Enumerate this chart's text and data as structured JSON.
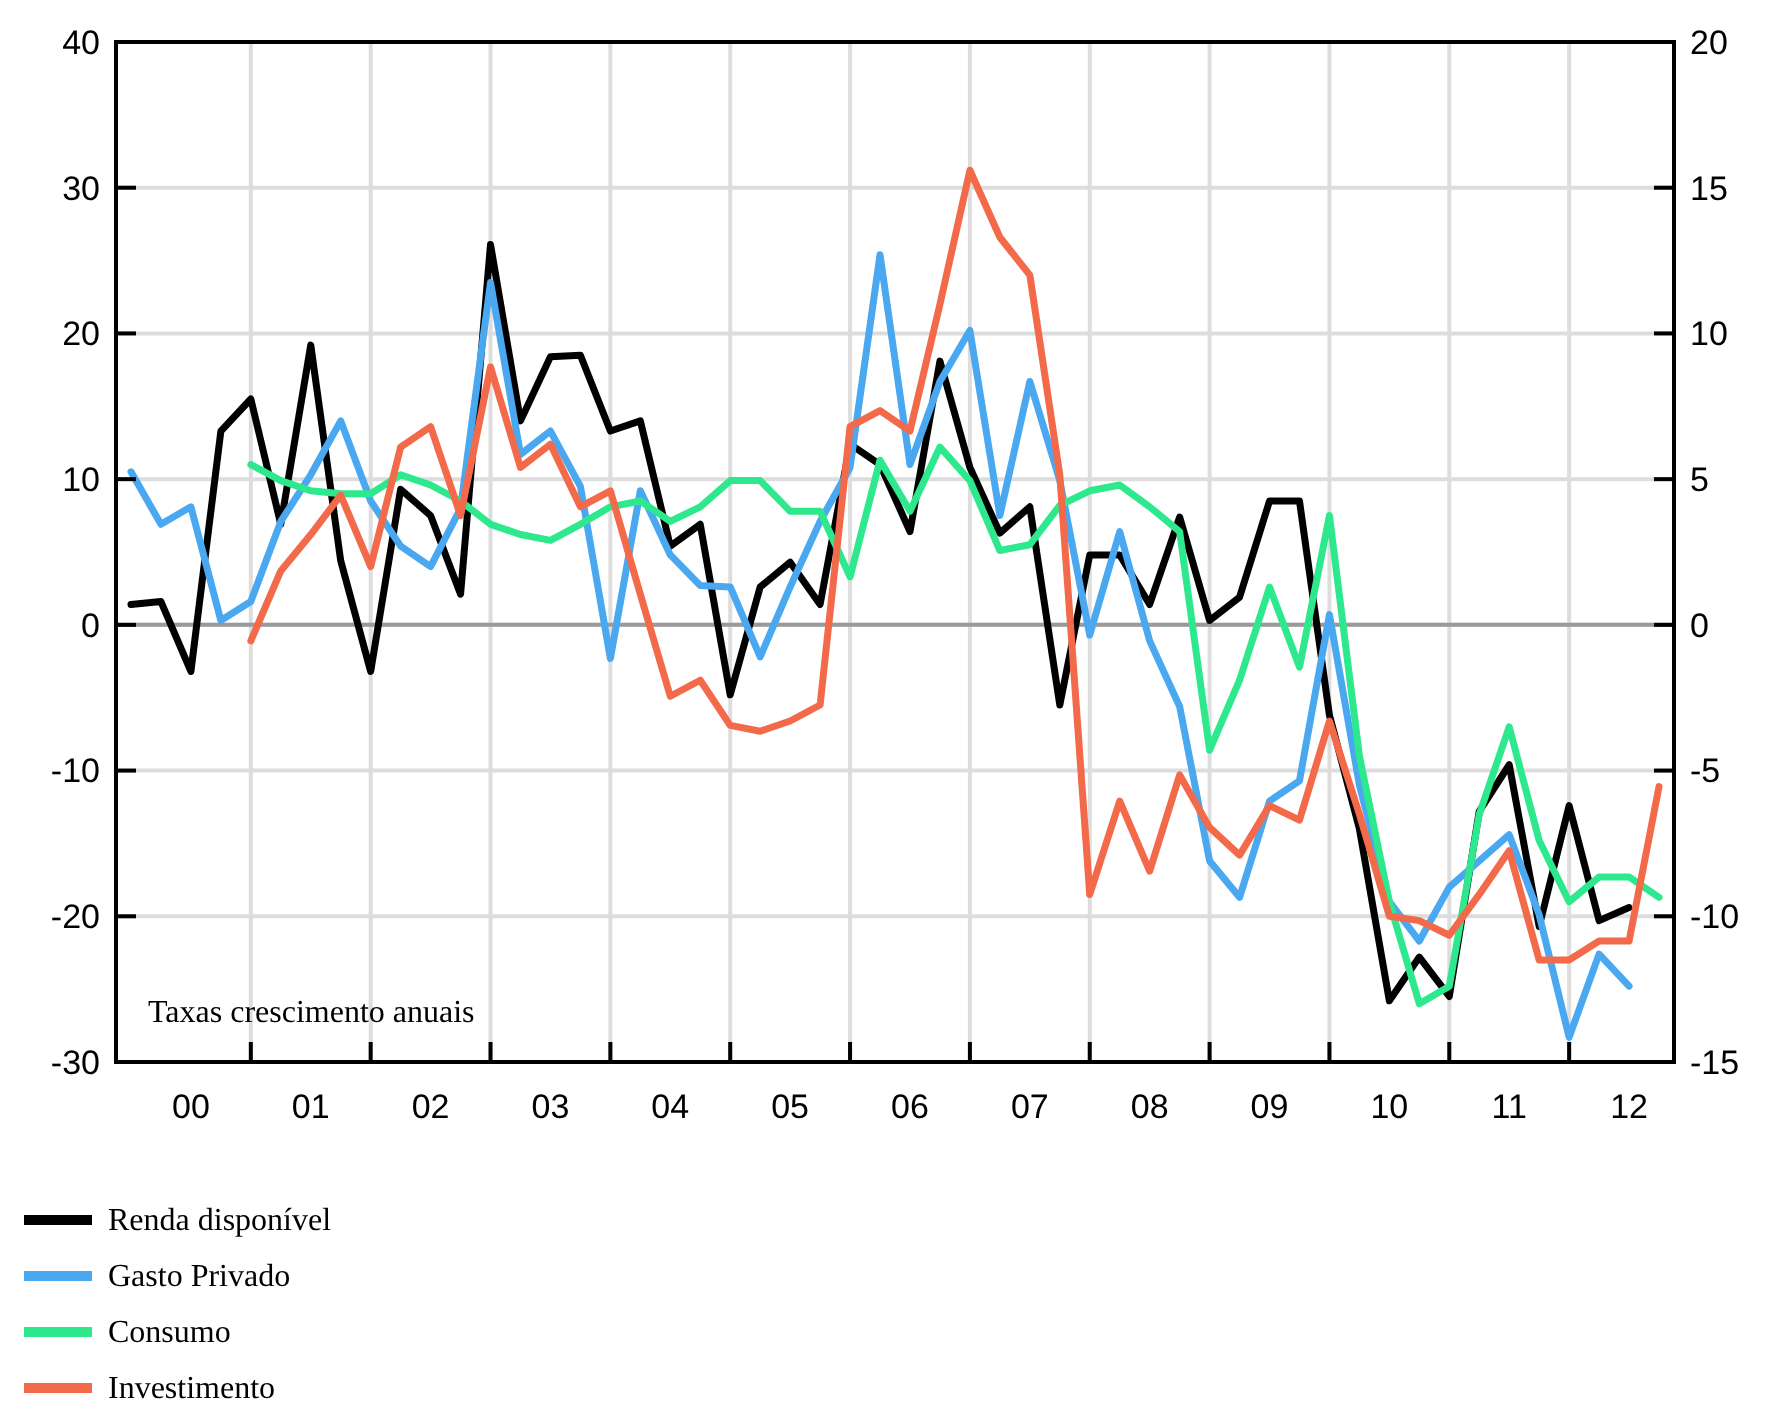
{
  "chart_data": {
    "type": "line",
    "categories": [
      null,
      null,
      "00",
      null,
      null,
      null,
      "01",
      null,
      null,
      null,
      "02",
      null,
      null,
      null,
      "03",
      null,
      null,
      null,
      "04",
      null,
      null,
      null,
      "05",
      null,
      null,
      null,
      "06",
      null,
      null,
      null,
      "07",
      null,
      null,
      null,
      "08",
      null,
      null,
      null,
      "09",
      null,
      null,
      null,
      "10",
      null,
      null,
      null,
      "11",
      null,
      null,
      null,
      "12",
      null
    ],
    "series": [
      {
        "name": "Renda disponível",
        "color": "#000000",
        "values": [
          1.4,
          1.6,
          -3.2,
          13.3,
          15.5,
          6.9,
          19.2,
          4.4,
          -3.2,
          9.3,
          7.5,
          2.1,
          26.1,
          14,
          18.4,
          18.5,
          13.3,
          14,
          5.4,
          6.9,
          -4.8,
          2.6,
          4.3,
          1.4,
          12.4,
          11,
          6.4,
          18.1,
          10.8,
          6.3,
          8.1,
          -5.5,
          4.8,
          4.8,
          1.4,
          7.4,
          0.3,
          1.9,
          8.5,
          8.5,
          -6.2,
          -14,
          -25.8,
          -22.8,
          -25.5,
          -12.8,
          -9.6,
          -20.7,
          -12.4,
          -20.3,
          -19.4,
          null
        ]
      },
      {
        "name": "Gasto Privado",
        "color": "#4aa8f0",
        "values": [
          10.5,
          6.9,
          8.1,
          0.3,
          1.6,
          7.1,
          10.3,
          14,
          8.5,
          5.4,
          4,
          8,
          23.5,
          11.7,
          13.3,
          9.5,
          -2.3,
          9.2,
          4.8,
          2.7,
          2.6,
          -2.2,
          2.6,
          7.1,
          10.8,
          25.4,
          11,
          16.7,
          20.2,
          7.5,
          16.7,
          9.9,
          -0.7,
          6.4,
          -1.1,
          -5.6,
          -16.2,
          -18.7,
          -12.1,
          -10.7,
          0.7,
          -11,
          -19,
          -21.7,
          -18,
          -16.2,
          -14.4,
          -19.9,
          -28.3,
          -22.6,
          -24.8,
          null
        ]
      },
      {
        "name": "Consumo",
        "color": "#2ee88e",
        "values": [
          null,
          null,
          null,
          null,
          11,
          9.9,
          9.2,
          9,
          9,
          10.3,
          9.6,
          8.5,
          6.9,
          6.2,
          5.8,
          6.9,
          8.1,
          8.5,
          7.1,
          8.1,
          9.9,
          9.9,
          7.8,
          7.8,
          3.3,
          11.3,
          7.8,
          12.2,
          9.9,
          5.1,
          5.5,
          8.2,
          9.2,
          9.6,
          8.1,
          6.4,
          -8.6,
          -3.8,
          2.6,
          -2.9,
          7.5,
          -9,
          -19,
          -26,
          -24.8,
          -13,
          -7,
          -14.8,
          -19,
          -17.3,
          -17.3,
          -18.7
        ]
      },
      {
        "name": "Investimento",
        "color": "#f26a4a",
        "values": [
          null,
          null,
          null,
          null,
          -1.1,
          3.7,
          6.2,
          8.9,
          4,
          12.2,
          13.6,
          7.5,
          17.7,
          10.8,
          12.4,
          8.1,
          9.2,
          2.1,
          -4.9,
          -3.8,
          -6.9,
          -7.3,
          -6.6,
          -5.5,
          13.6,
          14.7,
          13.3,
          22,
          31.2,
          26.6,
          24,
          10.3,
          -18.5,
          -12.1,
          -16.9,
          -10.3,
          -13.9,
          -15.8,
          -12.4,
          -13.4,
          -6.6,
          -13,
          -20,
          -20.3,
          -21.3,
          -18.5,
          -15.5,
          -23,
          -23,
          -21.7,
          -21.7,
          -11.1
        ]
      }
    ],
    "ylim": [
      -30,
      40
    ],
    "yticks": [
      -30,
      -20,
      -10,
      0,
      10,
      20,
      30,
      40
    ],
    "y2lim": [
      -15,
      20
    ],
    "y2ticks": [
      -15,
      -10,
      -5,
      0,
      5,
      10,
      15,
      20
    ],
    "ref_lines": [
      {
        "axis": "y",
        "value": 0,
        "color": "#9a9a9a"
      }
    ],
    "annotations": [
      "Taxas crescimento anuais"
    ],
    "grid": true,
    "legend": "bottom",
    "marker": "none",
    "line_style": "solid"
  }
}
